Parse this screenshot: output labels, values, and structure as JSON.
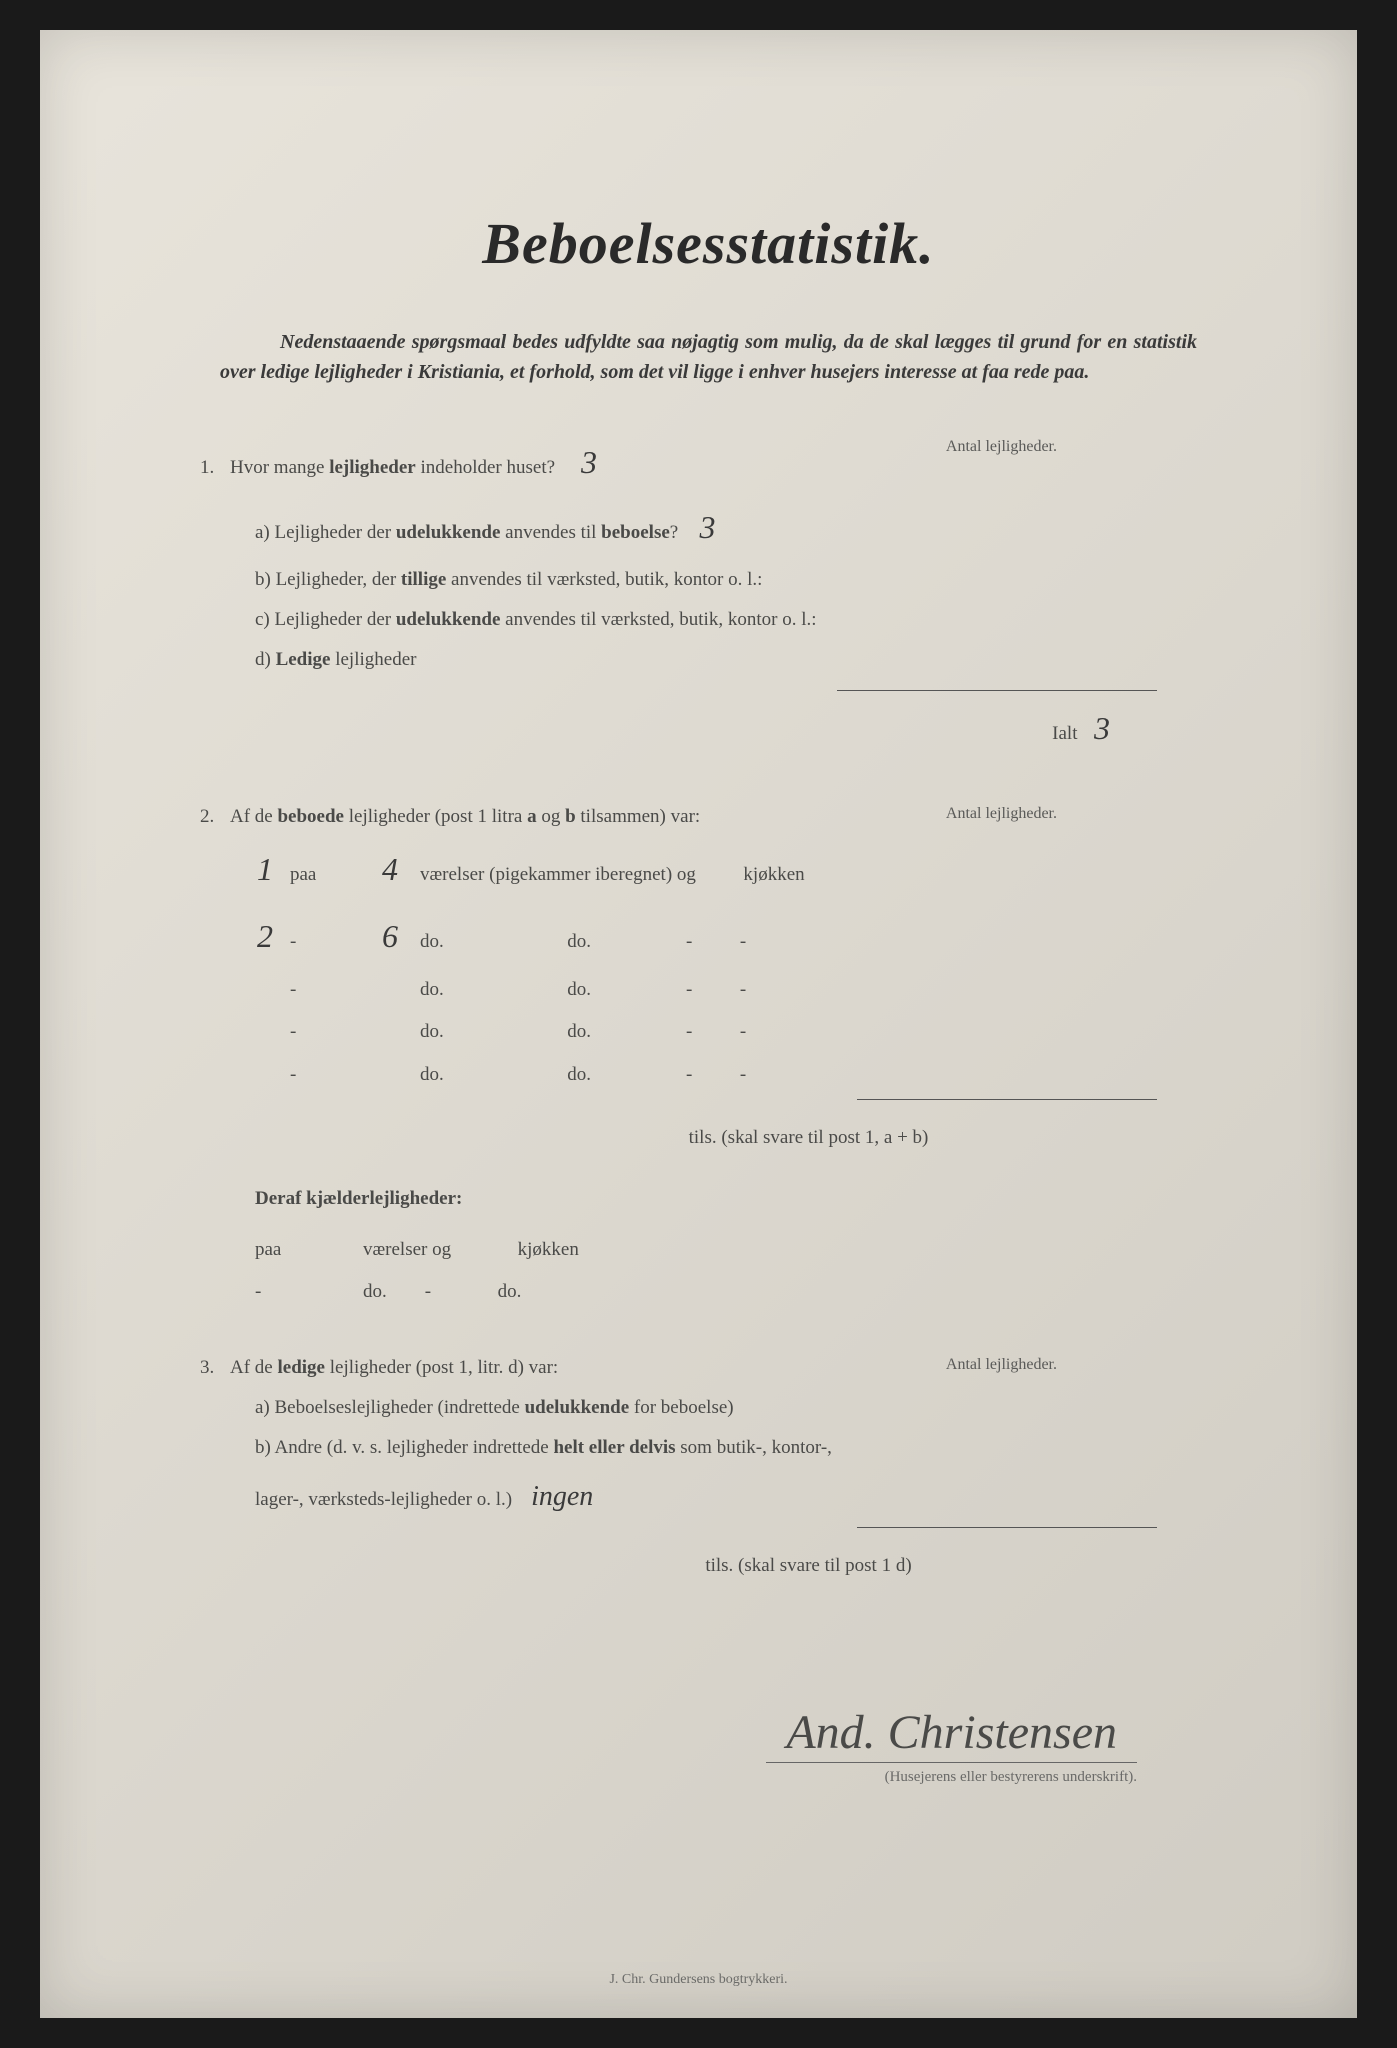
{
  "title": "Beboelsesstatistik.",
  "intro": "Nedenstaaende spørgsmaal bedes udfyldte saa nøjagtig som mulig, da de skal lægges til grund for en statistik over ledige lejligheder i Kristiania, et forhold, som det vil ligge i enhver husejers interesse at faa rede paa.",
  "q1": {
    "num": "1.",
    "text_a": "Hvor mange ",
    "text_b": "lejligheder",
    "text_c": " indeholder huset?",
    "answer": "3",
    "right_label": "Antal lejligheder.",
    "a": {
      "pre": "a) Lejligheder der ",
      "bold": "udelukkende",
      "post": " anvendes til ",
      "bold2": "beboelse",
      "q": "?",
      "ans": "3"
    },
    "b": {
      "pre": "b) Lejligheder, der ",
      "bold": "tillige",
      "post": " anvendes til værksted, butik, kontor o. l.:"
    },
    "c": {
      "pre": "c) Lejligheder der ",
      "bold": "udelukkende",
      "post": " anvendes til værksted, butik, kontor o. l.:"
    },
    "d": {
      "pre": "d) ",
      "bold": "Ledige",
      "post": " lejligheder"
    },
    "ialt_label": "Ialt",
    "ialt_value": "3"
  },
  "q2": {
    "num": "2.",
    "text_a": "Af de ",
    "bold": "beboede",
    "text_b": " lejligheder (post 1 litra ",
    "bold2": "a",
    "text_c": " og ",
    "bold3": "b",
    "text_d": " tilsammen) var:",
    "right_label": "Antal lejligheder.",
    "rows": [
      {
        "left": "1",
        "paa": "paa",
        "num": "4",
        "text": "værelser (pigekammer iberegnet) og",
        "kj": "kjøkken"
      },
      {
        "left": "2",
        "paa": "-",
        "num": "6",
        "text": "do.                          do.                    -",
        "kj": "-"
      },
      {
        "left": "",
        "paa": "-",
        "num": "",
        "text": "do.                          do.                    -",
        "kj": "-"
      },
      {
        "left": "",
        "paa": "-",
        "num": "",
        "text": "do.                          do.                    -",
        "kj": "-"
      },
      {
        "left": "",
        "paa": "-",
        "num": "",
        "text": "do.                          do.                    -",
        "kj": "-"
      }
    ],
    "tils": "tils. (skal svare til post 1, a + b)",
    "deraf": "Deraf kjælderlejligheder:",
    "deraf_rows": [
      {
        "paa": "paa",
        "text": "værelser og",
        "kj": "kjøkken"
      },
      {
        "paa": "-",
        "text": "do.        -",
        "kj": "do."
      }
    ]
  },
  "q3": {
    "num": "3.",
    "text_a": "Af de ",
    "bold": "ledige",
    "text_b": " lejligheder (post 1, litr. d) var:",
    "right_label": "Antal lejligheder.",
    "a": {
      "pre": "a) Beboelseslejligheder (indrettede ",
      "bold": "udelukkende",
      "post": " for beboelse)"
    },
    "b": {
      "pre": "b) Andre (d. v. s. lejligheder indrettede ",
      "bold": "helt eller delvis",
      "post": " som butik-, kontor-,"
    },
    "b2": "lager-, værksteds-lejligheder o. l.)",
    "b_ans": "ingen",
    "tils": "tils. (skal svare til post 1 d)"
  },
  "signature": "And. Christensen",
  "sig_caption": "(Husejerens eller bestyrerens underskrift).",
  "footer": "J. Chr. Gundersens bogtrykkeri."
}
